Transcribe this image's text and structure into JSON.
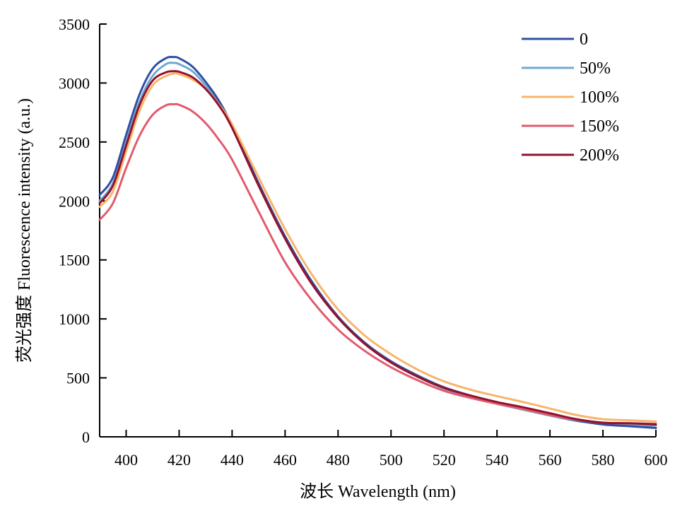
{
  "chart_data": {
    "type": "line",
    "xlabel": "波长 Wavelength (nm)",
    "ylabel": "荧光强度 Fluorescence intensity (a.u.)",
    "xlim": [
      390,
      600
    ],
    "ylim": [
      0,
      3500
    ],
    "xticks": [
      400,
      420,
      440,
      460,
      480,
      500,
      520,
      540,
      560,
      580,
      600
    ],
    "yticks": [
      0,
      500,
      1000,
      1500,
      2000,
      2500,
      3000,
      3500
    ],
    "grid": false,
    "legend_position": "top-right",
    "x": [
      390,
      395,
      400,
      405,
      410,
      415,
      418,
      420,
      425,
      430,
      435,
      440,
      450,
      460,
      470,
      480,
      490,
      500,
      510,
      520,
      530,
      540,
      550,
      560,
      570,
      580,
      590,
      600
    ],
    "series": [
      {
        "name": "0",
        "color": "#2f4fa1",
        "values": [
          2050,
          2200,
          2560,
          2900,
          3120,
          3210,
          3220,
          3210,
          3140,
          3010,
          2850,
          2640,
          2150,
          1700,
          1320,
          1020,
          800,
          640,
          520,
          420,
          350,
          290,
          240,
          190,
          140,
          105,
          90,
          75
        ]
      },
      {
        "name": "50%",
        "color": "#6fa8d2",
        "values": [
          2000,
          2150,
          2500,
          2840,
          3060,
          3160,
          3170,
          3160,
          3100,
          2980,
          2830,
          2620,
          2140,
          1690,
          1310,
          1010,
          790,
          630,
          510,
          410,
          340,
          280,
          230,
          180,
          135,
          110,
          100,
          95
        ]
      },
      {
        "name": "100%",
        "color": "#f7b56b",
        "values": [
          1950,
          2080,
          2420,
          2760,
          2980,
          3060,
          3080,
          3075,
          3030,
          2950,
          2820,
          2650,
          2200,
          1760,
          1380,
          1080,
          860,
          700,
          570,
          470,
          400,
          345,
          295,
          240,
          185,
          150,
          140,
          130
        ]
      },
      {
        "name": "150%",
        "color": "#e05b6d",
        "values": [
          1840,
          1980,
          2280,
          2550,
          2730,
          2810,
          2820,
          2815,
          2760,
          2660,
          2520,
          2350,
          1910,
          1480,
          1160,
          910,
          730,
          590,
          480,
          390,
          330,
          280,
          235,
          185,
          145,
          120,
          115,
          110
        ]
      },
      {
        "name": "200%",
        "color": "#94112c",
        "values": [
          1980,
          2130,
          2470,
          2810,
          3020,
          3090,
          3100,
          3095,
          3050,
          2950,
          2810,
          2620,
          2130,
          1680,
          1300,
          1010,
          790,
          630,
          510,
          415,
          350,
          295,
          250,
          200,
          150,
          120,
          115,
          105
        ]
      }
    ]
  }
}
